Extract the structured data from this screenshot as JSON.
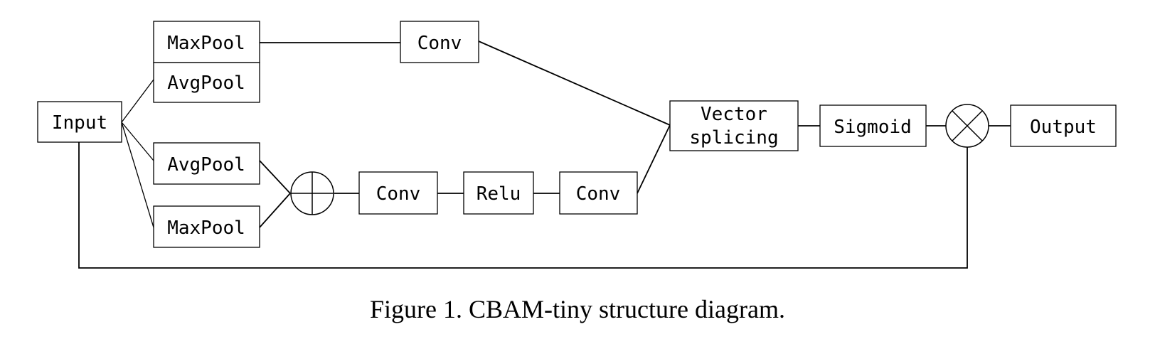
{
  "nodes": {
    "input": "Input",
    "maxpool_top": "MaxPool",
    "avgpool_top": "AvgPool",
    "conv_top": "Conv",
    "avgpool_bottom": "AvgPool",
    "maxpool_bottom": "MaxPool",
    "conv_mid1": "Conv",
    "relu": "Relu",
    "conv_mid2": "Conv",
    "vector_splicing_line1": "Vector",
    "vector_splicing_line2": "splicing",
    "sigmoid": "Sigmoid",
    "output": "Output"
  },
  "operators": {
    "add": "add-operator-icon",
    "multiply": "multiply-operator-icon"
  },
  "caption": "Figure 1. CBAM-tiny structure diagram."
}
